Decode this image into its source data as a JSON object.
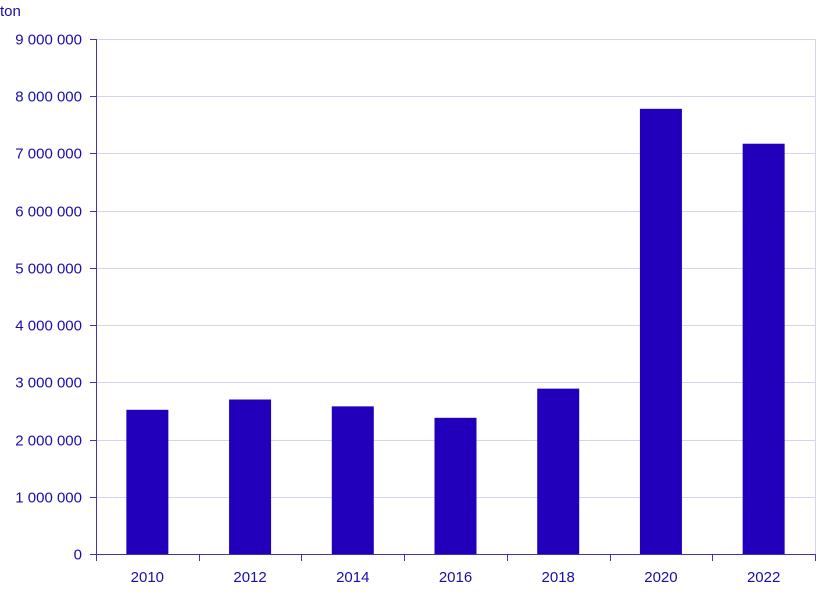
{
  "chart_data": {
    "type": "bar",
    "unit_label": "ton",
    "categories": [
      "2010",
      "2012",
      "2014",
      "2016",
      "2018",
      "2020",
      "2022"
    ],
    "values": [
      2520000,
      2700000,
      2580000,
      2380000,
      2890000,
      7780000,
      7170000
    ],
    "ylim": [
      0,
      9000000
    ],
    "y_ticks": [
      0,
      1000000,
      2000000,
      3000000,
      4000000,
      5000000,
      6000000,
      7000000,
      8000000,
      9000000
    ],
    "y_tick_labels": [
      "0",
      "1 000 000",
      "2 000 000",
      "3 000 000",
      "4 000 000",
      "5 000 000",
      "6 000 000",
      "7 000 000",
      "8 000 000",
      "9 000 000"
    ],
    "grid": true,
    "legend": "none",
    "colors": {
      "bar": "#2200bb",
      "text": "#1a0dab",
      "grid": "#d4d4ea",
      "axis": "#4433aa"
    }
  }
}
